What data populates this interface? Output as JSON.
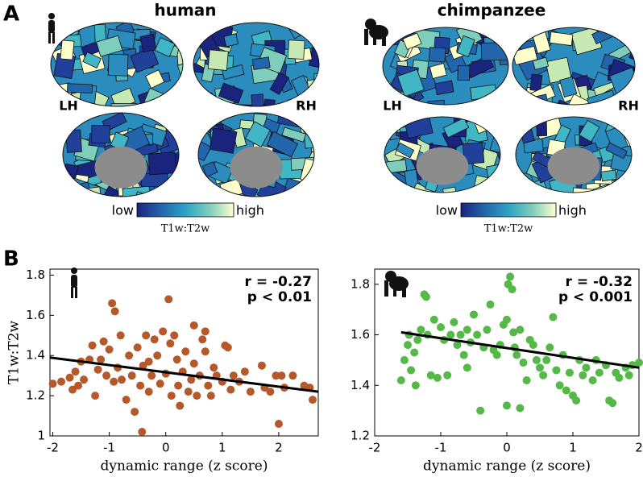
{
  "panel_labels": [
    "A",
    "B"
  ],
  "brain_maps": [
    {
      "title": "human",
      "left": "LH",
      "right": "RH",
      "colorbar": {
        "low": "low",
        "high": "high",
        "label": "T1w:T2w"
      }
    },
    {
      "title": "chimpanzee",
      "left": "LH",
      "right": "RH",
      "colorbar": {
        "low": "low",
        "high": "high",
        "label": "T1w:T2w"
      }
    }
  ],
  "chart_data": [
    {
      "type": "scatter",
      "xlabel": "dynamic range (z score)",
      "ylabel": "T1w:T2w",
      "color": "#b5592a",
      "annotations": [
        "r = -0.27",
        "p < 0.01"
      ],
      "xlim": [
        -2.05,
        2.7
      ],
      "ylim": [
        1,
        1.83
      ],
      "xticks": [
        -2,
        -1,
        0,
        1,
        2
      ],
      "yticks": [
        1,
        1.2,
        1.4,
        1.6,
        1.8
      ],
      "x": [
        -2.0,
        -1.85,
        -1.7,
        -1.65,
        -1.6,
        -1.55,
        -1.5,
        -1.45,
        -1.3,
        -1.25,
        -1.2,
        -1.15,
        -1.1,
        -1.05,
        -1.0,
        -0.95,
        -0.92,
        -0.9,
        -0.85,
        -0.8,
        -0.78,
        -0.7,
        -0.65,
        -0.6,
        -0.55,
        -0.5,
        -0.45,
        -0.42,
        -0.4,
        -0.35,
        -0.3,
        -0.25,
        -0.2,
        -0.15,
        -0.1,
        -0.05,
        0.0,
        0.05,
        0.08,
        0.1,
        0.15,
        0.2,
        0.22,
        0.25,
        0.3,
        0.35,
        0.4,
        0.45,
        0.5,
        0.55,
        0.6,
        0.65,
        0.7,
        0.75,
        0.8,
        0.85,
        0.9,
        1.0,
        1.05,
        1.1,
        1.15,
        1.2,
        1.3,
        1.4,
        1.5,
        1.7,
        1.75,
        1.85,
        1.95,
        2.0,
        2.05,
        2.1,
        2.25,
        2.45,
        2.55,
        2.6,
        0.5,
        -1.35,
        0.7,
        -0.3
      ],
      "values": [
        1.26,
        1.27,
        1.29,
        1.23,
        1.32,
        1.25,
        1.37,
        1.28,
        1.45,
        1.2,
        1.33,
        1.38,
        1.47,
        1.3,
        1.43,
        1.66,
        1.27,
        1.62,
        1.34,
        1.5,
        1.28,
        1.18,
        1.4,
        1.3,
        1.12,
        1.44,
        1.25,
        1.02,
        1.35,
        1.5,
        1.22,
        1.3,
        1.48,
        1.4,
        1.26,
        1.52,
        1.31,
        1.68,
        1.46,
        1.2,
        1.5,
        1.38,
        1.25,
        1.15,
        1.32,
        1.42,
        1.22,
        1.28,
        1.36,
        1.2,
        1.3,
        1.48,
        1.42,
        1.25,
        1.2,
        1.34,
        1.3,
        1.27,
        1.45,
        1.44,
        1.23,
        1.3,
        1.27,
        1.32,
        1.22,
        1.35,
        1.24,
        1.22,
        1.3,
        1.06,
        1.3,
        1.24,
        1.3,
        1.25,
        1.24,
        1.18,
        1.55,
        1.38,
        1.52,
        1.37
      ],
      "fit": {
        "x": [
          -2.05,
          2.7
        ],
        "y": [
          1.39,
          1.22
        ],
        "color": "#000000"
      }
    },
    {
      "type": "scatter",
      "xlabel": "dynamic range (z score)",
      "color": "#55b848",
      "annotations": [
        "r = -0.32",
        "p < 0.001"
      ],
      "xlim": [
        -2,
        2
      ],
      "ylim": [
        1.2,
        1.86
      ],
      "xticks": [
        -2,
        -1,
        0,
        1,
        2
      ],
      "yticks": [
        1.2,
        1.4,
        1.6,
        1.8
      ],
      "x": [
        -1.6,
        -1.55,
        -1.5,
        -1.48,
        -1.45,
        -1.4,
        -1.38,
        -1.35,
        -1.3,
        -1.25,
        -1.22,
        -1.2,
        -1.15,
        -1.1,
        -1.05,
        -1.0,
        -0.95,
        -0.9,
        -0.85,
        -0.8,
        -0.75,
        -0.7,
        -0.65,
        -0.6,
        -0.55,
        -0.5,
        -0.45,
        -0.4,
        -0.35,
        -0.3,
        -0.25,
        -0.2,
        -0.15,
        -0.1,
        -0.05,
        0.0,
        0.02,
        0.05,
        0.08,
        0.1,
        0.12,
        0.15,
        0.2,
        0.25,
        0.3,
        0.35,
        0.4,
        0.45,
        0.5,
        0.55,
        0.6,
        0.65,
        0.7,
        0.75,
        0.8,
        0.85,
        0.9,
        0.95,
        1.0,
        1.05,
        1.1,
        1.15,
        1.2,
        1.3,
        1.35,
        1.4,
        1.5,
        1.55,
        1.6,
        1.65,
        1.7,
        1.8,
        1.85,
        1.9,
        2.0,
        0.0,
        0.2,
        -0.6
      ],
      "values": [
        1.42,
        1.5,
        1.56,
        1.6,
        1.46,
        1.53,
        1.4,
        1.58,
        1.62,
        1.76,
        1.75,
        1.6,
        1.44,
        1.66,
        1.43,
        1.63,
        1.58,
        1.44,
        1.6,
        1.65,
        1.56,
        1.6,
        1.52,
        1.62,
        1.57,
        1.68,
        1.6,
        1.3,
        1.55,
        1.62,
        1.72,
        1.54,
        1.52,
        1.56,
        1.64,
        1.66,
        1.8,
        1.83,
        1.78,
        1.61,
        1.55,
        1.52,
        1.62,
        1.49,
        1.42,
        1.58,
        1.56,
        1.5,
        1.47,
        1.44,
        1.5,
        1.55,
        1.67,
        1.46,
        1.4,
        1.52,
        1.38,
        1.45,
        1.36,
        1.34,
        1.5,
        1.44,
        1.47,
        1.42,
        1.5,
        1.45,
        1.48,
        1.34,
        1.33,
        1.45,
        1.43,
        1.47,
        1.44,
        1.48,
        1.49,
        1.32,
        1.31,
        1.47
      ],
      "fit": {
        "x": [
          -1.6,
          2
        ],
        "y": [
          1.61,
          1.47
        ],
        "color": "#000000"
      }
    }
  ]
}
